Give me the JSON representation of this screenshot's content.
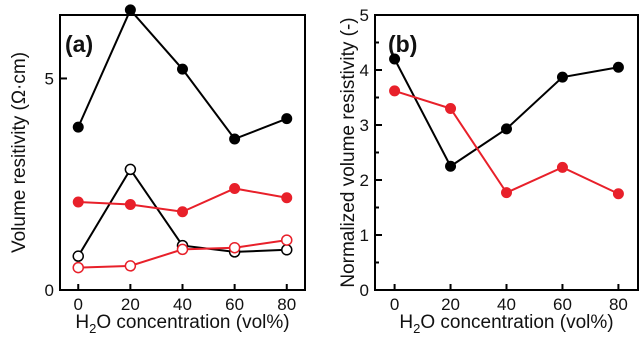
{
  "chart_data": [
    {
      "type": "line",
      "panel_label": "(a)",
      "xlabel": "H₂O concentration (vol%)",
      "ylabel": "Volume resitivity (Ω·cm)",
      "x": [
        0,
        20,
        40,
        60,
        80
      ],
      "x_ticks": [
        "0",
        "20",
        "40",
        "60",
        "80"
      ],
      "xlim": [
        -7,
        87
      ],
      "y_ticks": [
        "0",
        "5"
      ],
      "y_tick_values": [
        0,
        5
      ],
      "ylim": [
        0,
        6.5
      ],
      "grid": false,
      "legend": "none",
      "series": [
        {
          "color": "#000000",
          "marker": "filled",
          "values": [
            3.85,
            6.62,
            5.22,
            3.57,
            4.05
          ]
        },
        {
          "color": "#000000",
          "marker": "open",
          "values": [
            0.8,
            2.85,
            1.05,
            0.9,
            0.95
          ]
        },
        {
          "color": "#e8202a",
          "marker": "filled",
          "values": [
            2.08,
            2.02,
            1.85,
            2.4,
            2.18
          ]
        },
        {
          "color": "#e8202a",
          "marker": "open",
          "values": [
            0.53,
            0.57,
            0.96,
            1.0,
            1.18
          ]
        }
      ]
    },
    {
      "type": "line",
      "panel_label": "(b)",
      "xlabel": "H₂O concentration (vol%)",
      "ylabel": "Normalized volume resistivity (-)",
      "x": [
        0,
        20,
        40,
        60,
        80
      ],
      "x_ticks": [
        "0",
        "20",
        "40",
        "60",
        "80"
      ],
      "xlim": [
        -7,
        87
      ],
      "y_ticks": [
        "0",
        "1",
        "2",
        "3",
        "4",
        "5"
      ],
      "y_tick_values": [
        0,
        1,
        2,
        3,
        4,
        5
      ],
      "ylim": [
        0,
        5
      ],
      "grid": false,
      "legend": "none",
      "series": [
        {
          "color": "#000000",
          "marker": "filled",
          "values": [
            4.2,
            2.25,
            2.93,
            3.87,
            4.05
          ]
        },
        {
          "color": "#e8202a",
          "marker": "filled",
          "values": [
            3.62,
            3.3,
            1.77,
            2.23,
            1.75
          ]
        }
      ]
    }
  ]
}
